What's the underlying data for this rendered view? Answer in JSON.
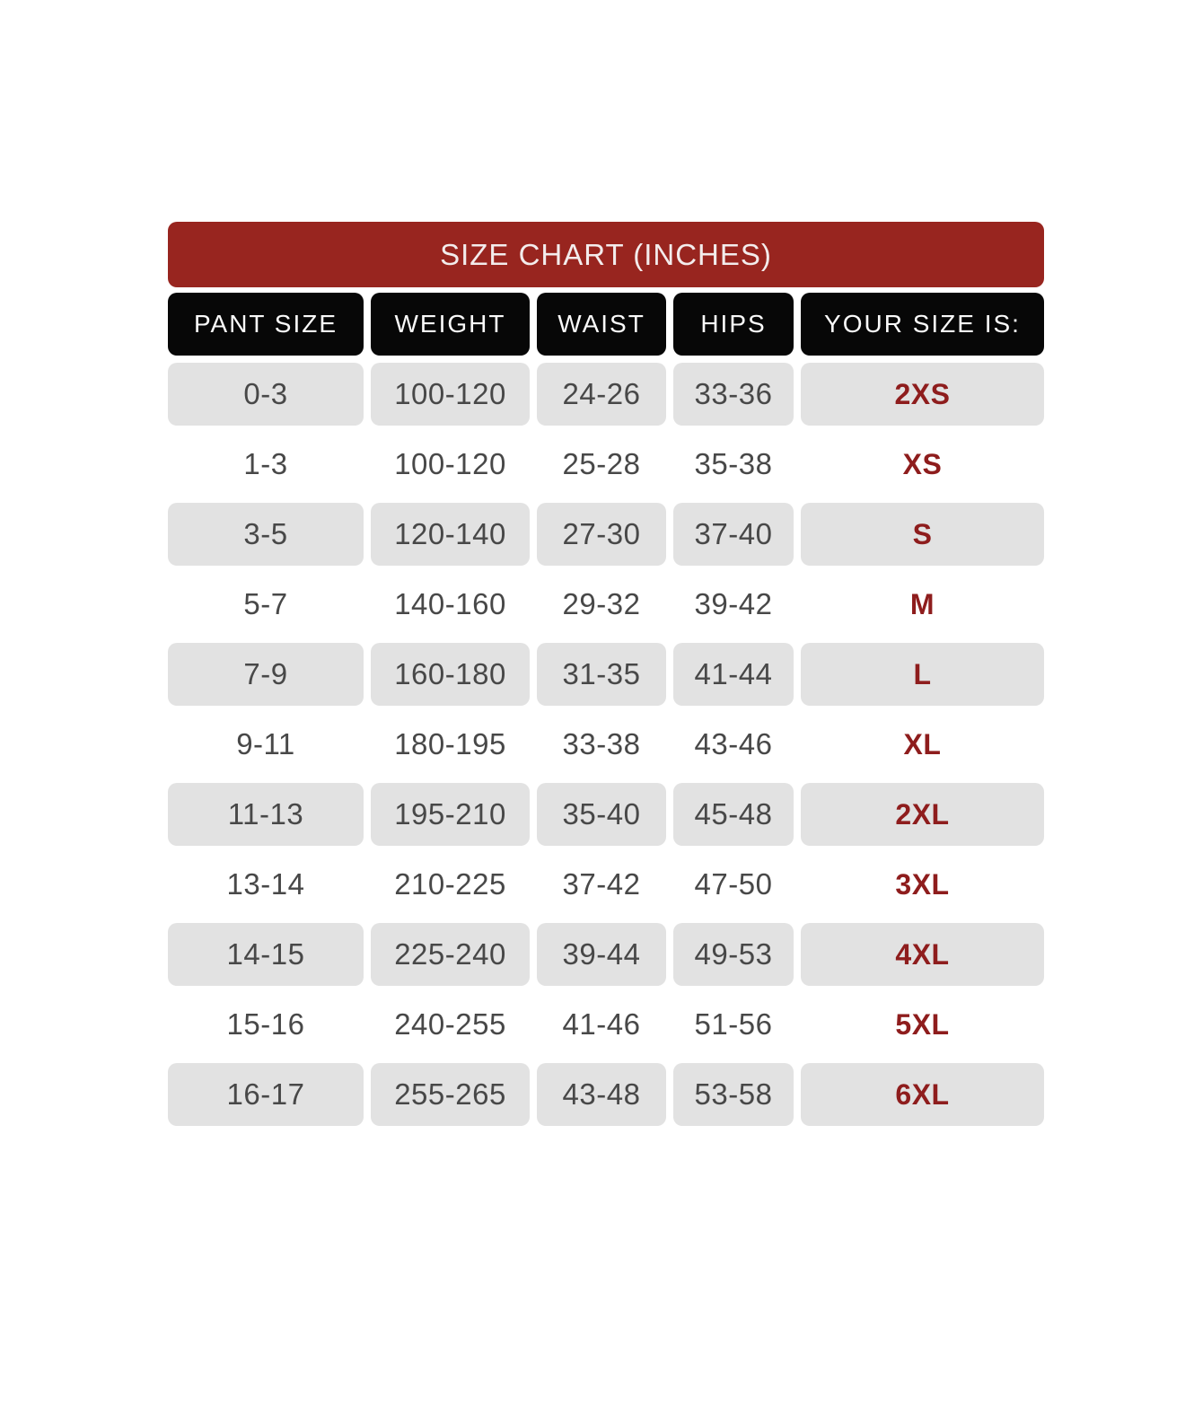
{
  "chart": {
    "title": "SIZE CHART (INCHES)",
    "columns": [
      "PANT SIZE",
      "WEIGHT",
      "WAIST",
      "HIPS",
      "YOUR SIZE IS:"
    ],
    "rows": [
      {
        "pant_size": "0-3",
        "weight": "100-120",
        "waist": "24-26",
        "hips": "33-36",
        "size": "2XS"
      },
      {
        "pant_size": "1-3",
        "weight": "100-120",
        "waist": "25-28",
        "hips": "35-38",
        "size": "XS"
      },
      {
        "pant_size": "3-5",
        "weight": "120-140",
        "waist": "27-30",
        "hips": "37-40",
        "size": "S"
      },
      {
        "pant_size": "5-7",
        "weight": "140-160",
        "waist": "29-32",
        "hips": "39-42",
        "size": "M"
      },
      {
        "pant_size": "7-9",
        "weight": "160-180",
        "waist": "31-35",
        "hips": "41-44",
        "size": "L"
      },
      {
        "pant_size": "9-11",
        "weight": "180-195",
        "waist": "33-38",
        "hips": "43-46",
        "size": "XL"
      },
      {
        "pant_size": "11-13",
        "weight": "195-210",
        "waist": "35-40",
        "hips": "45-48",
        "size": "2XL"
      },
      {
        "pant_size": "13-14",
        "weight": "210-225",
        "waist": "37-42",
        "hips": "47-50",
        "size": "3XL"
      },
      {
        "pant_size": "14-15",
        "weight": "225-240",
        "waist": "39-44",
        "hips": "49-53",
        "size": "4XL"
      },
      {
        "pant_size": "15-16",
        "weight": "240-255",
        "waist": "41-46",
        "hips": "51-56",
        "size": "5XL"
      },
      {
        "pant_size": "16-17",
        "weight": "255-265",
        "waist": "43-48",
        "hips": "53-58",
        "size": "6XL"
      }
    ]
  },
  "colors": {
    "title_bg": "#98251f",
    "title_text": "#f3ecec",
    "header_bg": "#070707",
    "header_text": "#fafafa",
    "shaded_cell_bg": "#e2e2e2",
    "cell_text": "#484848",
    "size_text": "#8e1d1d"
  }
}
